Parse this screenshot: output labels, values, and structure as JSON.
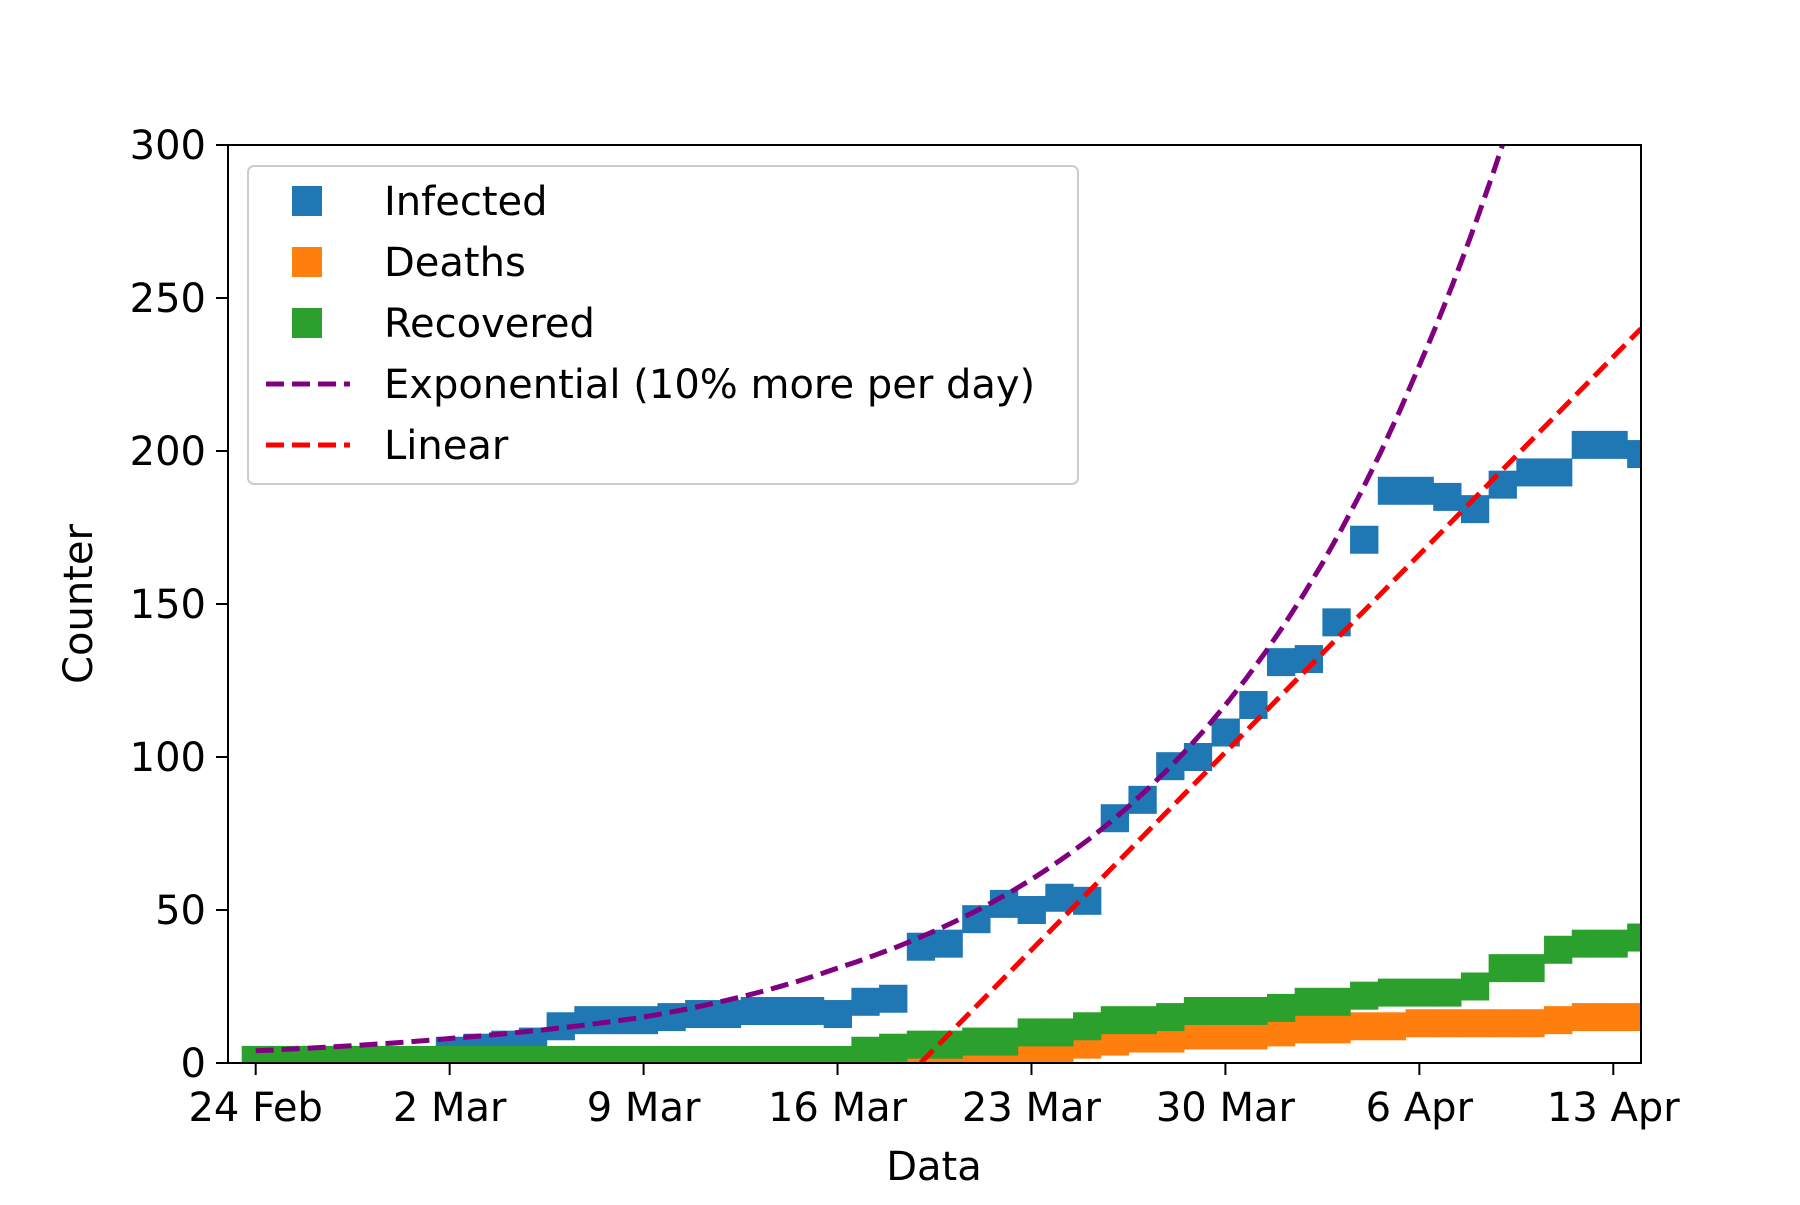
{
  "chart_data": {
    "type": "scatter",
    "title": "",
    "xlabel": "Data",
    "ylabel": "Counter",
    "x_axis": {
      "type": "date",
      "range": [
        "2020-02-23",
        "2020-04-14"
      ],
      "ticks": [
        {
          "date": "2020-02-24",
          "label": "24 Feb"
        },
        {
          "date": "2020-03-02",
          "label": "2 Mar"
        },
        {
          "date": "2020-03-09",
          "label": "9 Mar"
        },
        {
          "date": "2020-03-16",
          "label": "16 Mar"
        },
        {
          "date": "2020-03-23",
          "label": "23 Mar"
        },
        {
          "date": "2020-03-30",
          "label": "30 Mar"
        },
        {
          "date": "2020-04-06",
          "label": "6 Apr"
        },
        {
          "date": "2020-04-13",
          "label": "13 Apr"
        }
      ]
    },
    "y_axis": {
      "range": [
        0,
        300
      ],
      "ticks": [
        {
          "value": 0,
          "label": "0"
        },
        {
          "value": 50,
          "label": "50"
        },
        {
          "value": 100,
          "label": "100"
        },
        {
          "value": 150,
          "label": "150"
        },
        {
          "value": 200,
          "label": "200"
        },
        {
          "value": 250,
          "label": "250"
        },
        {
          "value": 300,
          "label": "300"
        }
      ]
    },
    "grid": false,
    "legend": {
      "placement": "upper-left",
      "entries": [
        {
          "label": "Infected",
          "type": "marker",
          "color": "#1f77b4"
        },
        {
          "label": "Deaths",
          "type": "marker",
          "color": "#ff7f0e"
        },
        {
          "label": "Recovered",
          "type": "marker",
          "color": "#2ca02c"
        },
        {
          "label": "Exponential (10% more per day)",
          "type": "dashed-line",
          "color": "#800080"
        },
        {
          "label": "Linear",
          "type": "dashed-line",
          "color": "#ff0000"
        }
      ]
    },
    "series": [
      {
        "name": "Infected",
        "kind": "marker",
        "color": "#1f77b4",
        "x": [
          "2020-02-24",
          "2020-02-25",
          "2020-02-26",
          "2020-02-27",
          "2020-02-28",
          "2020-02-29",
          "2020-03-01",
          "2020-03-02",
          "2020-03-03",
          "2020-03-04",
          "2020-03-05",
          "2020-03-06",
          "2020-03-07",
          "2020-03-08",
          "2020-03-09",
          "2020-03-10",
          "2020-03-11",
          "2020-03-12",
          "2020-03-13",
          "2020-03-14",
          "2020-03-15",
          "2020-03-16",
          "2020-03-17",
          "2020-03-18",
          "2020-03-19",
          "2020-03-20",
          "2020-03-21",
          "2020-03-22",
          "2020-03-23",
          "2020-03-24",
          "2020-03-25",
          "2020-03-26",
          "2020-03-27",
          "2020-03-28",
          "2020-03-29",
          "2020-03-30",
          "2020-03-31",
          "2020-04-01",
          "2020-04-02",
          "2020-04-03",
          "2020-04-04",
          "2020-04-05",
          "2020-04-06",
          "2020-04-07",
          "2020-04-08",
          "2020-04-09",
          "2020-04-10",
          "2020-04-11",
          "2020-04-12",
          "2020-04-13",
          "2020-04-14"
        ],
        "values": [
          1,
          1,
          1,
          1,
          1,
          1,
          1,
          4,
          5,
          6,
          7,
          12,
          14,
          14,
          14,
          15,
          16,
          16,
          17,
          17,
          17,
          16,
          20,
          21,
          38,
          39,
          47,
          52,
          50,
          54,
          53,
          80,
          86,
          97,
          100,
          108,
          117,
          131,
          132,
          144,
          171,
          187,
          187,
          185,
          181,
          189,
          193,
          193,
          202,
          202,
          199
        ]
      },
      {
        "name": "Deaths",
        "kind": "marker",
        "color": "#ff7f0e",
        "x": [
          "2020-02-24",
          "2020-02-25",
          "2020-02-26",
          "2020-02-27",
          "2020-02-28",
          "2020-02-29",
          "2020-03-01",
          "2020-03-02",
          "2020-03-03",
          "2020-03-04",
          "2020-03-05",
          "2020-03-06",
          "2020-03-07",
          "2020-03-08",
          "2020-03-09",
          "2020-03-10",
          "2020-03-11",
          "2020-03-12",
          "2020-03-13",
          "2020-03-14",
          "2020-03-15",
          "2020-03-16",
          "2020-03-17",
          "2020-03-18",
          "2020-03-19",
          "2020-03-20",
          "2020-03-21",
          "2020-03-22",
          "2020-03-23",
          "2020-03-24",
          "2020-03-25",
          "2020-03-26",
          "2020-03-27",
          "2020-03-28",
          "2020-03-29",
          "2020-03-30",
          "2020-03-31",
          "2020-04-01",
          "2020-04-02",
          "2020-04-03",
          "2020-04-04",
          "2020-04-05",
          "2020-04-06",
          "2020-04-07",
          "2020-04-08",
          "2020-04-09",
          "2020-04-10",
          "2020-04-11",
          "2020-04-12",
          "2020-04-13",
          "2020-04-14"
        ],
        "values": [
          0,
          0,
          0,
          0,
          0,
          0,
          0,
          0,
          0,
          0,
          0,
          0,
          0,
          0,
          0,
          0,
          0,
          0,
          0,
          0,
          0,
          0,
          0,
          0,
          0,
          0,
          0,
          0,
          3,
          4,
          6,
          7,
          8,
          8,
          9,
          9,
          9,
          10,
          11,
          11,
          12,
          12,
          13,
          13,
          13,
          13,
          13,
          14,
          15,
          15,
          15
        ]
      },
      {
        "name": "Recovered",
        "kind": "marker",
        "color": "#2ca02c",
        "x": [
          "2020-02-24",
          "2020-02-25",
          "2020-02-26",
          "2020-02-27",
          "2020-02-28",
          "2020-02-29",
          "2020-03-01",
          "2020-03-02",
          "2020-03-03",
          "2020-03-04",
          "2020-03-05",
          "2020-03-06",
          "2020-03-07",
          "2020-03-08",
          "2020-03-09",
          "2020-03-10",
          "2020-03-11",
          "2020-03-12",
          "2020-03-13",
          "2020-03-14",
          "2020-03-15",
          "2020-03-16",
          "2020-03-17",
          "2020-03-18",
          "2020-03-19",
          "2020-03-20",
          "2020-03-21",
          "2020-03-22",
          "2020-03-23",
          "2020-03-24",
          "2020-03-25",
          "2020-03-26",
          "2020-03-27",
          "2020-03-28",
          "2020-03-29",
          "2020-03-30",
          "2020-03-31",
          "2020-04-01",
          "2020-04-02",
          "2020-04-03",
          "2020-04-04",
          "2020-04-05",
          "2020-04-06",
          "2020-04-07",
          "2020-04-08",
          "2020-04-09",
          "2020-04-10",
          "2020-04-11",
          "2020-04-12",
          "2020-04-13",
          "2020-04-14"
        ],
        "values": [
          1,
          1,
          1,
          1,
          1,
          1,
          1,
          1,
          1,
          1,
          1,
          1,
          1,
          1,
          1,
          1,
          1,
          1,
          1,
          1,
          1,
          1,
          4,
          5,
          6,
          6,
          7,
          7,
          10,
          10,
          12,
          14,
          14,
          15,
          17,
          17,
          17,
          18,
          20,
          20,
          22,
          23,
          23,
          23,
          25,
          31,
          31,
          37,
          39,
          39,
          41
        ]
      },
      {
        "name": "Exponential (10% more per day)",
        "kind": "dashed-line",
        "color": "#800080",
        "x": [
          "2020-02-24",
          "2020-03-02",
          "2020-03-09",
          "2020-03-16",
          "2020-03-23",
          "2020-03-30",
          "2020-04-06",
          "2020-04-09"
        ],
        "values": [
          4,
          8,
          15,
          31,
          60,
          117,
          228,
          300
        ]
      },
      {
        "name": "Linear",
        "kind": "dashed-line",
        "color": "#ff0000",
        "x": [
          "2020-03-19",
          "2020-04-14"
        ],
        "values": [
          0,
          240
        ]
      }
    ]
  }
}
